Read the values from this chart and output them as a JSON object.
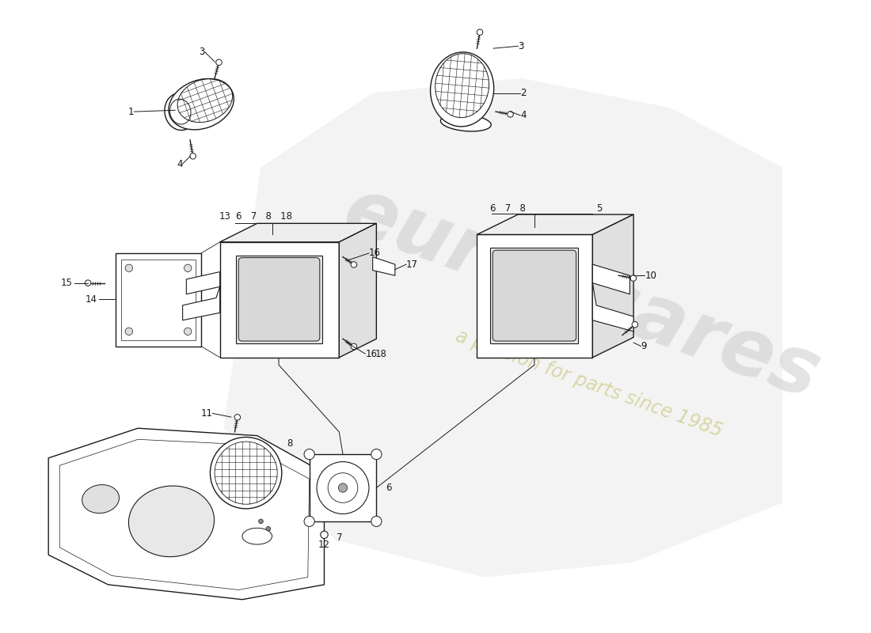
{
  "bg_color": "#ffffff",
  "line_color": "#1a1a1a",
  "label_color": "#111111",
  "watermark_color1": "#d0d0d0",
  "watermark_color2": "#cccc88",
  "watermark_bg_color": "#e0e0e0"
}
